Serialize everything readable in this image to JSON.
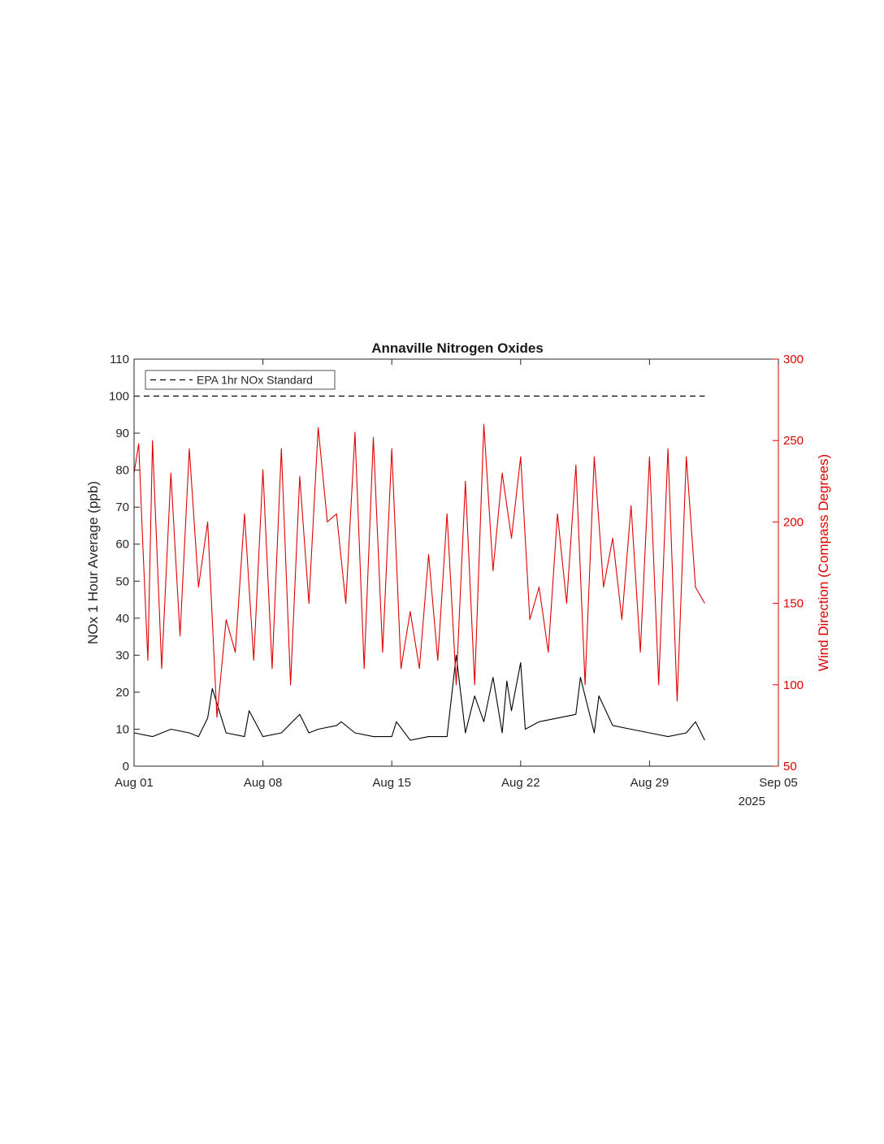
{
  "chart_data": {
    "type": "line",
    "title": "Annaville Nitrogen Oxides",
    "ylabel": "NOx 1 Hour Average (ppb)",
    "y2label": "Wind Direction (Compass Degrees)",
    "xlim": [
      "2025-08-01",
      "2025-09-05"
    ],
    "ylim": [
      0,
      110
    ],
    "y2lim": [
      50,
      300
    ],
    "x_ticks": [
      "2025-08-01",
      "2025-08-08",
      "2025-08-15",
      "2025-08-22",
      "2025-08-29",
      "2025-09-05"
    ],
    "x_tick_labels": [
      "Aug 01",
      "Aug 08",
      "Aug 15",
      "Aug 22",
      "Aug 29",
      "Sep 05"
    ],
    "x_year_label": "2025",
    "y_ticks": [
      0,
      10,
      20,
      30,
      40,
      50,
      60,
      70,
      80,
      90,
      100,
      110
    ],
    "y2_ticks": [
      50,
      100,
      150,
      200,
      250,
      300
    ],
    "grid": false,
    "legend": {
      "position": "top-left",
      "entries": [
        "EPA 1hr NOx Standard"
      ]
    },
    "colors": {
      "nox": "#000000",
      "wind": "#e00000",
      "standard": "#000000"
    },
    "series": [
      {
        "name": "EPA 1hr NOx Standard",
        "axis": "left",
        "style": "dashed",
        "x": [
          "2025-08-01",
          "2025-09-01"
        ],
        "y": [
          100,
          100
        ]
      },
      {
        "axis": "left",
        "style": "solid",
        "x": [
          "2025-08-01",
          "2025-08-02",
          "2025-08-03",
          "2025-08-04",
          "2025-08-04 12:00",
          "2025-08-05",
          "2025-08-05 06:00",
          "2025-08-06",
          "2025-08-07",
          "2025-08-07 06:00",
          "2025-08-08",
          "2025-08-09",
          "2025-08-10",
          "2025-08-10 12:00",
          "2025-08-11",
          "2025-08-12",
          "2025-08-12 06:00",
          "2025-08-13",
          "2025-08-14",
          "2025-08-15",
          "2025-08-15 06:00",
          "2025-08-16",
          "2025-08-17",
          "2025-08-18",
          "2025-08-18 12:00",
          "2025-08-19",
          "2025-08-19 12:00",
          "2025-08-20",
          "2025-08-20 12:00",
          "2025-08-21",
          "2025-08-21 06:00",
          "2025-08-21 12:00",
          "2025-08-22",
          "2025-08-22 06:00",
          "2025-08-23",
          "2025-08-24",
          "2025-08-25",
          "2025-08-25 06:00",
          "2025-08-26",
          "2025-08-26 06:00",
          "2025-08-27",
          "2025-08-28",
          "2025-08-29",
          "2025-08-30",
          "2025-08-31",
          "2025-08-31 12:00",
          "2025-09-01"
        ],
        "y": [
          9,
          8,
          10,
          9,
          8,
          13,
          21,
          9,
          8,
          15,
          8,
          9,
          14,
          9,
          10,
          11,
          12,
          9,
          8,
          8,
          12,
          7,
          8,
          8,
          30,
          9,
          19,
          12,
          24,
          9,
          23,
          15,
          28,
          10,
          12,
          13,
          14,
          24,
          9,
          19,
          11,
          10,
          9,
          8,
          9,
          12,
          7
        ]
      },
      {
        "axis": "right",
        "style": "solid",
        "x": [
          "2025-08-01",
          "2025-08-01 06:00",
          "2025-08-01 12:00",
          "2025-08-01 18:00",
          "2025-08-02",
          "2025-08-02 12:00",
          "2025-08-03",
          "2025-08-03 12:00",
          "2025-08-04",
          "2025-08-04 12:00",
          "2025-08-05",
          "2025-08-05 12:00",
          "2025-08-06",
          "2025-08-06 12:00",
          "2025-08-07",
          "2025-08-07 12:00",
          "2025-08-08",
          "2025-08-08 12:00",
          "2025-08-09",
          "2025-08-09 12:00",
          "2025-08-10",
          "2025-08-10 12:00",
          "2025-08-11",
          "2025-08-11 12:00",
          "2025-08-12",
          "2025-08-12 12:00",
          "2025-08-13",
          "2025-08-13 12:00",
          "2025-08-14",
          "2025-08-14 12:00",
          "2025-08-15",
          "2025-08-15 12:00",
          "2025-08-16",
          "2025-08-16 12:00",
          "2025-08-17",
          "2025-08-17 12:00",
          "2025-08-18",
          "2025-08-18 12:00",
          "2025-08-19",
          "2025-08-19 12:00",
          "2025-08-20",
          "2025-08-20 12:00",
          "2025-08-21",
          "2025-08-21 12:00",
          "2025-08-22",
          "2025-08-22 12:00",
          "2025-08-23",
          "2025-08-23 12:00",
          "2025-08-24",
          "2025-08-24 12:00",
          "2025-08-25",
          "2025-08-25 12:00",
          "2025-08-26",
          "2025-08-26 12:00",
          "2025-08-27",
          "2025-08-27 12:00",
          "2025-08-28",
          "2025-08-28 12:00",
          "2025-08-29",
          "2025-08-29 12:00",
          "2025-08-30",
          "2025-08-30 12:00",
          "2025-08-31",
          "2025-08-31 12:00",
          "2025-09-01"
        ],
        "y": [
          230,
          248,
          180,
          115,
          250,
          110,
          230,
          130,
          245,
          160,
          200,
          80,
          140,
          120,
          205,
          115,
          232,
          110,
          245,
          100,
          228,
          150,
          258,
          200,
          205,
          150,
          255,
          110,
          252,
          120,
          245,
          110,
          145,
          110,
          180,
          115,
          205,
          100,
          225,
          100,
          260,
          170,
          230,
          190,
          240,
          140,
          160,
          120,
          205,
          150,
          235,
          100,
          240,
          160,
          190,
          140,
          210,
          120,
          240,
          100,
          245,
          90,
          240,
          160,
          150
        ]
      }
    ]
  }
}
